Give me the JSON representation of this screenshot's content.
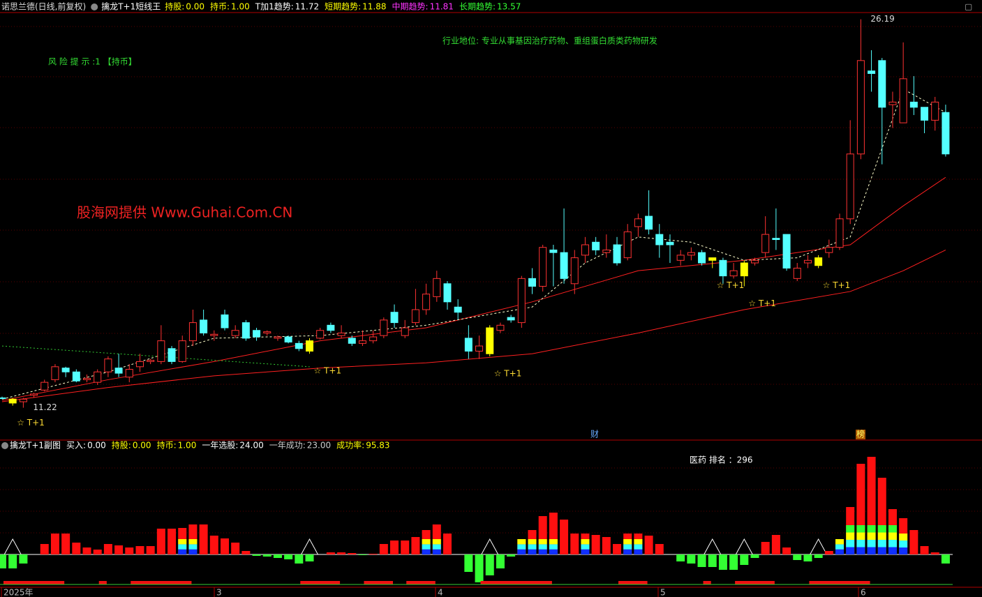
{
  "header": {
    "stock": "诺思兰德(日线,前复权)",
    "indicator": "擒龙T+1短线王",
    "items": [
      {
        "label": "持股:",
        "value": "0.00",
        "color": "#ffff00"
      },
      {
        "label": "持币:",
        "value": "1.00",
        "color": "#ffff00"
      },
      {
        "label": "T加1趋势:",
        "value": "11.72",
        "color": "#ffffff"
      },
      {
        "label": "短期趋势:",
        "value": "11.88",
        "color": "#ffff00"
      },
      {
        "label": "中期趋势:",
        "value": "11.81",
        "color": "#ff33ff"
      },
      {
        "label": "长期趋势:",
        "value": "13.57",
        "color": "#33ff33"
      }
    ]
  },
  "notes": {
    "industry": "行业地位: 专业从事基因治疗药物、重组蛋白质类药物研发",
    "risk": "风 险 提 示 :1 【持币】",
    "watermark": "股海网提供 Www.Guhai.Com.CN",
    "rank": "医药 排名 ：296",
    "cai": "财",
    "bang": "榜"
  },
  "chart_data": {
    "type": "candlestick",
    "up_color": "#ff3232",
    "down_color": "#54ffff",
    "signal_color": "#ffff00",
    "ylim": [
      10.0,
      26.45
    ],
    "max_label": 26.19,
    "min_label": 11.22,
    "ohlc": [
      [
        11.6,
        11.65,
        11.55,
        11.6
      ],
      [
        11.55,
        11.6,
        11.3,
        11.4
      ],
      [
        11.45,
        11.6,
        11.22,
        11.55
      ],
      [
        11.7,
        11.8,
        11.6,
        11.75
      ],
      [
        11.9,
        12.3,
        11.85,
        12.2
      ],
      [
        12.3,
        12.9,
        12.2,
        12.8
      ],
      [
        12.75,
        12.8,
        12.4,
        12.6
      ],
      [
        12.6,
        12.7,
        12.2,
        12.25
      ],
      [
        12.3,
        12.5,
        12.2,
        12.35
      ],
      [
        12.2,
        12.7,
        12.1,
        12.6
      ],
      [
        12.6,
        13.2,
        12.4,
        13.1
      ],
      [
        12.75,
        13.3,
        12.4,
        12.55
      ],
      [
        12.4,
        12.9,
        12.2,
        12.7
      ],
      [
        12.8,
        13.3,
        12.6,
        13.0
      ],
      [
        13.0,
        13.1,
        12.9,
        13.05
      ],
      [
        13.0,
        14.4,
        12.9,
        13.8
      ],
      [
        13.5,
        13.6,
        12.9,
        13.0
      ],
      [
        13.0,
        14.0,
        12.95,
        13.8
      ],
      [
        13.8,
        15.0,
        13.6,
        14.5
      ],
      [
        14.6,
        15.0,
        14.0,
        14.1
      ],
      [
        14.0,
        14.2,
        13.8,
        14.05
      ],
      [
        14.8,
        15.0,
        14.2,
        14.3
      ],
      [
        14.0,
        14.4,
        13.9,
        14.2
      ],
      [
        14.5,
        14.6,
        13.8,
        13.9
      ],
      [
        14.2,
        14.3,
        13.8,
        13.95
      ],
      [
        14.1,
        14.2,
        14.0,
        14.15
      ],
      [
        13.9,
        14.0,
        13.8,
        13.95
      ],
      [
        13.95,
        14.0,
        13.7,
        13.75
      ],
      [
        13.7,
        13.8,
        13.4,
        13.5
      ],
      [
        13.4,
        13.9,
        13.3,
        13.8
      ],
      [
        13.9,
        14.3,
        13.85,
        14.2
      ],
      [
        14.4,
        14.5,
        14.1,
        14.2
      ],
      [
        14.0,
        14.4,
        13.9,
        14.1
      ],
      [
        13.9,
        14.0,
        13.6,
        13.7
      ],
      [
        13.7,
        14.2,
        13.6,
        13.8
      ],
      [
        13.8,
        14.2,
        13.7,
        13.95
      ],
      [
        14.0,
        14.7,
        13.9,
        14.6
      ],
      [
        14.9,
        15.2,
        14.3,
        14.5
      ],
      [
        14.0,
        14.6,
        13.9,
        14.3
      ],
      [
        14.5,
        15.8,
        14.4,
        15.0
      ],
      [
        15.0,
        16.0,
        14.8,
        15.6
      ],
      [
        15.5,
        16.5,
        15.3,
        16.2
      ],
      [
        16.0,
        16.1,
        15.0,
        15.3
      ],
      [
        15.1,
        15.4,
        14.6,
        14.9
      ],
      [
        13.9,
        14.4,
        13.1,
        13.4
      ],
      [
        13.4,
        14.0,
        13.1,
        13.6
      ],
      [
        14.3,
        14.4,
        13.2,
        13.3
      ],
      [
        14.2,
        14.5,
        14.1,
        14.4
      ],
      [
        14.7,
        14.8,
        14.5,
        14.6
      ],
      [
        14.5,
        16.3,
        14.3,
        16.2
      ],
      [
        16.2,
        16.6,
        15.6,
        15.9
      ],
      [
        15.9,
        17.5,
        15.7,
        17.4
      ],
      [
        17.3,
        17.5,
        15.9,
        17.2
      ],
      [
        17.2,
        18.9,
        16.0,
        16.2
      ],
      [
        16.0,
        17.3,
        15.6,
        17.0
      ],
      [
        17.1,
        17.8,
        16.8,
        17.5
      ],
      [
        17.6,
        17.8,
        17.1,
        17.3
      ],
      [
        17.2,
        17.9,
        17.0,
        17.3
      ],
      [
        17.5,
        17.8,
        16.7,
        16.8
      ],
      [
        17.0,
        18.3,
        16.9,
        18.0
      ],
      [
        18.2,
        18.7,
        17.8,
        18.5
      ],
      [
        18.6,
        19.6,
        17.9,
        18.1
      ],
      [
        17.9,
        18.3,
        17.0,
        17.5
      ],
      [
        17.6,
        17.9,
        16.8,
        17.5
      ],
      [
        16.9,
        17.3,
        16.7,
        17.1
      ],
      [
        17.1,
        17.4,
        16.9,
        17.2
      ],
      [
        17.2,
        17.3,
        16.7,
        16.8
      ],
      [
        16.9,
        17.0,
        16.6,
        17.0
      ],
      [
        16.9,
        17.0,
        16.0,
        16.3
      ],
      [
        16.3,
        16.8,
        16.2,
        16.5
      ],
      [
        16.3,
        16.9,
        15.9,
        16.8
      ],
      [
        16.8,
        17.0,
        16.7,
        16.9
      ],
      [
        17.2,
        18.6,
        17.0,
        17.9
      ],
      [
        17.75,
        18.9,
        17.3,
        17.7
      ],
      [
        17.9,
        17.9,
        16.5,
        16.6
      ],
      [
        16.2,
        16.8,
        16.1,
        16.6
      ],
      [
        16.8,
        17.1,
        16.6,
        16.9
      ],
      [
        16.7,
        17.1,
        16.6,
        17.0
      ],
      [
        17.2,
        17.7,
        17.0,
        17.4
      ],
      [
        17.4,
        18.7,
        17.3,
        18.5
      ],
      [
        18.5,
        22.3,
        18.3,
        21.0
      ],
      [
        21.0,
        26.19,
        20.8,
        24.6
      ],
      [
        24.2,
        25.0,
        23.4,
        24.1
      ],
      [
        24.6,
        24.7,
        20.6,
        22.8
      ],
      [
        22.9,
        23.4,
        22.0,
        23.0
      ],
      [
        22.2,
        25.3,
        22.2,
        23.9
      ],
      [
        23.0,
        24.0,
        22.5,
        22.8
      ],
      [
        22.8,
        22.8,
        21.8,
        22.3
      ],
      [
        22.3,
        23.2,
        21.9,
        23.0
      ],
      [
        22.6,
        22.9,
        20.9,
        21.0
      ]
    ],
    "signals": [
      {
        "candle": 1,
        "label": "☆ T+1"
      },
      {
        "candle": 29,
        "label": "☆ T+1"
      },
      {
        "candle": 46,
        "label": "☆ T+1"
      },
      {
        "candle": 67,
        "label": "☆ T+1"
      },
      {
        "candle": 70,
        "label": "☆ T+1"
      },
      {
        "candle": 77,
        "label": "☆ T+1"
      }
    ],
    "lines": [
      {
        "color": "#ff2020",
        "dash": "",
        "x": [
          0,
          10,
          20,
          30,
          40,
          50,
          60,
          70,
          80,
          85,
          89
        ],
        "values": [
          11.45,
          12.0,
          12.45,
          12.75,
          12.95,
          13.3,
          14.1,
          15.0,
          15.7,
          16.5,
          17.3
        ]
      },
      {
        "color": "#ff2020",
        "dash": "",
        "x": [
          0,
          10,
          20,
          30,
          40,
          50,
          60,
          70,
          75,
          80,
          85,
          89
        ],
        "values": [
          11.5,
          12.3,
          13.0,
          13.8,
          14.3,
          15.3,
          16.5,
          16.9,
          17.2,
          17.5,
          19.0,
          20.1
        ]
      },
      {
        "color": "#ffffcc",
        "dash": "3,3",
        "x": [
          0,
          10,
          20,
          30,
          40,
          50,
          55,
          60,
          65,
          70,
          75,
          80,
          85,
          89
        ],
        "values": [
          11.55,
          12.6,
          13.9,
          14.0,
          14.4,
          15.1,
          16.8,
          17.8,
          17.6,
          16.9,
          17.0,
          17.8,
          23.5,
          22.6
        ]
      },
      {
        "color": "#33cc33",
        "dash": "2,3",
        "x": [
          0,
          29
        ],
        "values": [
          13.6,
          12.8
        ]
      }
    ],
    "x_labels": [
      "2025年",
      "3",
      "4",
      "5",
      "6"
    ],
    "lower": {
      "title": "擒龙T+1副图",
      "items": [
        {
          "label": "买入:",
          "value": "0.00",
          "color": "#ffffff"
        },
        {
          "label": "持股:",
          "value": "0.00",
          "color": "#ffff00"
        },
        {
          "label": "持币:",
          "value": "1.00",
          "color": "#ffff00"
        },
        {
          "label": "一年选股:",
          "value": "24.00",
          "color": "#ffffff"
        },
        {
          "label": "一年成功:",
          "value": "23.00",
          "color": "#cccccc"
        },
        {
          "label": "成功率:",
          "value": "95.83",
          "color": "#ffff00"
        }
      ],
      "ylim": [
        -45,
        155
      ],
      "pos_color": "#ff1010",
      "neg_color": "#33ff33",
      "stack_colors": [
        "#1030ff",
        "#33ffff",
        "#ffff00",
        "#33ff33"
      ],
      "values": [
        -20,
        -20,
        -13,
        0,
        15,
        30,
        30,
        17,
        10,
        7,
        15,
        13,
        10,
        12,
        12,
        37,
        37,
        38,
        43,
        43,
        27,
        23,
        17,
        5,
        -2,
        -3,
        -5,
        -7,
        -13,
        -10,
        0,
        3,
        3,
        2,
        -1,
        1,
        15,
        20,
        20,
        25,
        35,
        43,
        30,
        0,
        -25,
        -40,
        -30,
        -20,
        -3,
        22,
        35,
        55,
        60,
        50,
        30,
        30,
        28,
        25,
        15,
        30,
        30,
        27,
        15,
        0,
        -10,
        -13,
        -18,
        -18,
        -22,
        -22,
        -15,
        -5,
        18,
        28,
        10,
        -8,
        -10,
        -5,
        5,
        22,
        68,
        130,
        140,
        110,
        65,
        52,
        35,
        12,
        3,
        -13
      ],
      "signal": [
        null,
        null,
        null,
        null,
        null,
        null,
        null,
        null,
        null,
        null,
        null,
        null,
        null,
        null,
        null,
        null,
        null,
        22,
        22,
        null,
        null,
        null,
        null,
        null,
        null,
        null,
        null,
        null,
        null,
        null,
        null,
        null,
        null,
        null,
        null,
        null,
        null,
        null,
        null,
        null,
        22,
        22,
        null,
        null,
        null,
        null,
        null,
        null,
        null,
        22,
        22,
        22,
        22,
        null,
        null,
        22,
        null,
        null,
        null,
        22,
        22,
        null,
        null,
        null,
        null,
        null,
        null,
        null,
        null,
        null,
        null,
        null,
        null,
        null,
        null,
        null,
        null,
        null,
        null,
        22,
        42,
        42,
        42,
        42,
        42,
        30,
        null,
        null,
        null,
        null
      ]
    }
  }
}
